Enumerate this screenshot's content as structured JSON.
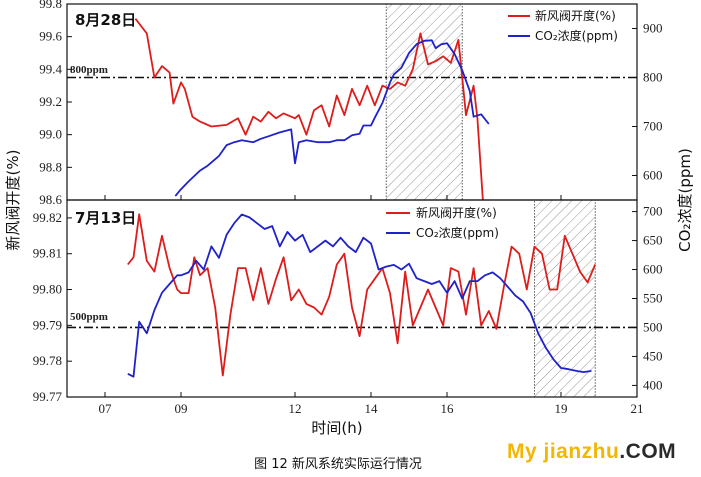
{
  "caption": "图 12 新风系统实际运行情况",
  "watermark": {
    "part1": "My jianzhu",
    "part2": ".COM"
  },
  "shared": {
    "xlabel": "时间(h)",
    "xticks": [
      7,
      9,
      12,
      14,
      16,
      19,
      21
    ],
    "xtick_labels": [
      "07",
      "09",
      "12",
      "14",
      "16",
      "19",
      "21"
    ],
    "xlim": [
      6,
      21
    ],
    "ylabel_left": "新风阀开度(%)",
    "ylabel_right": "CO₂浓度(ppm)"
  },
  "chart_data": [
    {
      "type": "line",
      "title": "8月28日",
      "xlim": [
        6,
        21
      ],
      "ylim_left": [
        98.6,
        99.8
      ],
      "ylim_right": [
        550,
        950
      ],
      "yticks_left": [
        "98.6",
        "98.8",
        "99.0",
        "99.2",
        "99.4",
        "99.6",
        "99.8"
      ],
      "yticks_right": [
        "600",
        "700",
        "800",
        "900"
      ],
      "reference": {
        "label": "800ppm",
        "value": 800,
        "axis": "right"
      },
      "shaded_range": [
        14.4,
        16.4
      ],
      "legend_position": "top-right",
      "series": [
        {
          "name": "新风阀开度(%)",
          "axis": "left",
          "color": "#dd1c1c",
          "x": [
            7.8,
            8.0,
            8.1,
            8.3,
            8.5,
            8.7,
            8.8,
            9.0,
            9.1,
            9.3,
            9.5,
            9.8,
            10.2,
            10.5,
            10.7,
            10.9,
            11.1,
            11.3,
            11.5,
            11.7,
            12.0,
            12.1,
            12.3,
            12.5,
            12.7,
            12.9,
            13.1,
            13.3,
            13.5,
            13.7,
            13.9,
            14.1,
            14.3,
            14.5,
            14.7,
            14.9,
            15.1,
            15.3,
            15.5,
            15.7,
            15.9,
            16.1,
            16.3,
            16.5,
            16.7,
            16.8,
            16.95
          ],
          "y": [
            99.71,
            99.65,
            99.62,
            99.35,
            99.42,
            99.38,
            99.19,
            99.32,
            99.28,
            99.11,
            99.08,
            99.05,
            99.06,
            99.1,
            99.0,
            99.11,
            99.08,
            99.14,
            99.1,
            99.13,
            99.1,
            99.12,
            99.0,
            99.15,
            99.18,
            99.05,
            99.24,
            99.12,
            99.28,
            99.18,
            99.3,
            99.18,
            99.3,
            99.28,
            99.32,
            99.3,
            99.4,
            99.62,
            99.43,
            99.45,
            99.48,
            99.44,
            99.58,
            99.12,
            99.3,
            99.1,
            98.58
          ]
        },
        {
          "name": "CO₂浓度(ppm)",
          "axis": "right",
          "color": "#1f22c8",
          "x": [
            8.85,
            9.0,
            9.2,
            9.5,
            9.7,
            10.0,
            10.2,
            10.4,
            10.6,
            10.9,
            11.1,
            11.3,
            11.6,
            11.9,
            12.0,
            12.1,
            12.3,
            12.6,
            12.9,
            13.1,
            13.3,
            13.5,
            13.7,
            13.8,
            14.0,
            14.1,
            14.3,
            14.5,
            14.6,
            14.8,
            15.0,
            15.2,
            15.4,
            15.6,
            15.7,
            15.85,
            16.0,
            16.2,
            16.4,
            16.6,
            16.7,
            16.9,
            17.1
          ],
          "y": [
            558,
            572,
            588,
            610,
            620,
            640,
            662,
            668,
            672,
            668,
            675,
            680,
            688,
            694,
            625,
            668,
            672,
            668,
            668,
            672,
            672,
            682,
            685,
            702,
            702,
            718,
            748,
            790,
            806,
            820,
            850,
            868,
            875,
            876,
            860,
            868,
            870,
            848,
            815,
            772,
            720,
            725,
            705
          ]
        }
      ]
    },
    {
      "type": "line",
      "title": "7月13日",
      "xlim": [
        6,
        21
      ],
      "ylim_left": [
        99.77,
        99.825
      ],
      "ylim_right": [
        380,
        720
      ],
      "yticks_left": [
        "99.77",
        "99.78",
        "99.79",
        "99.80",
        "99.81",
        "99.82"
      ],
      "yticks_right": [
        "400",
        "450",
        "500",
        "550",
        "600",
        "650",
        "700"
      ],
      "reference": {
        "label": "500ppm",
        "value": 500,
        "axis": "right"
      },
      "shaded_range": [
        18.3,
        19.9
      ],
      "legend_position": "top-center",
      "series": [
        {
          "name": "新风阀开度(%)",
          "axis": "left",
          "color": "#dd1c1c",
          "x": [
            7.6,
            7.75,
            7.9,
            8.1,
            8.3,
            8.5,
            8.7,
            8.9,
            9.0,
            9.2,
            9.35,
            9.5,
            9.7,
            9.9,
            10.1,
            10.3,
            10.5,
            10.7,
            10.9,
            11.1,
            11.3,
            11.5,
            11.7,
            11.9,
            12.1,
            12.3,
            12.5,
            12.7,
            12.9,
            13.1,
            13.3,
            13.5,
            13.7,
            13.9,
            14.1,
            14.3,
            14.5,
            14.7,
            14.9,
            15.1,
            15.3,
            15.5,
            15.7,
            15.9,
            16.1,
            16.3,
            16.5,
            16.7,
            16.9,
            17.1,
            17.3,
            17.5,
            17.7,
            17.9,
            18.1,
            18.3,
            18.5,
            18.7,
            18.9,
            19.1,
            19.3,
            19.5,
            19.7,
            19.9
          ],
          "y": [
            99.807,
            99.809,
            99.821,
            99.808,
            99.805,
            99.815,
            99.806,
            99.8,
            99.799,
            99.799,
            99.809,
            99.804,
            99.806,
            99.795,
            99.776,
            99.793,
            99.806,
            99.806,
            99.797,
            99.806,
            99.796,
            99.803,
            99.809,
            99.797,
            99.8,
            99.796,
            99.795,
            99.793,
            99.798,
            99.807,
            99.81,
            99.795,
            99.787,
            99.8,
            99.803,
            99.806,
            99.799,
            99.785,
            99.805,
            99.79,
            99.795,
            99.8,
            99.795,
            99.79,
            99.806,
            99.805,
            99.793,
            99.806,
            99.79,
            99.794,
            99.789,
            99.801,
            99.812,
            99.81,
            99.8,
            99.812,
            99.81,
            99.8,
            99.8,
            99.815,
            99.81,
            99.805,
            99.802,
            99.807
          ]
        },
        {
          "name": "CO₂浓度(ppm)",
          "axis": "right",
          "color": "#1f22c8",
          "x": [
            7.6,
            7.75,
            7.9,
            8.1,
            8.3,
            8.5,
            8.7,
            8.9,
            9.0,
            9.2,
            9.4,
            9.6,
            9.8,
            10.0,
            10.2,
            10.4,
            10.6,
            10.8,
            11.0,
            11.2,
            11.4,
            11.6,
            11.8,
            12.0,
            12.2,
            12.4,
            12.6,
            12.8,
            13.0,
            13.2,
            13.4,
            13.6,
            13.8,
            14.0,
            14.2,
            14.4,
            14.6,
            14.8,
            15.0,
            15.2,
            15.4,
            15.6,
            15.8,
            16.0,
            16.2,
            16.4,
            16.6,
            16.8,
            17.0,
            17.2,
            17.4,
            17.6,
            17.8,
            18.0,
            18.2,
            18.4,
            18.6,
            18.8,
            19.0,
            19.2,
            19.4,
            19.6,
            19.8
          ],
          "y": [
            420,
            415,
            510,
            490,
            530,
            560,
            575,
            590,
            590,
            595,
            615,
            600,
            640,
            620,
            660,
            680,
            695,
            690,
            680,
            670,
            675,
            640,
            665,
            650,
            660,
            630,
            640,
            650,
            640,
            655,
            640,
            630,
            655,
            645,
            600,
            605,
            608,
            600,
            610,
            585,
            580,
            575,
            580,
            560,
            580,
            550,
            580,
            580,
            590,
            595,
            585,
            570,
            555,
            545,
            525,
            490,
            465,
            445,
            430,
            428,
            425,
            423,
            425
          ]
        }
      ]
    }
  ]
}
